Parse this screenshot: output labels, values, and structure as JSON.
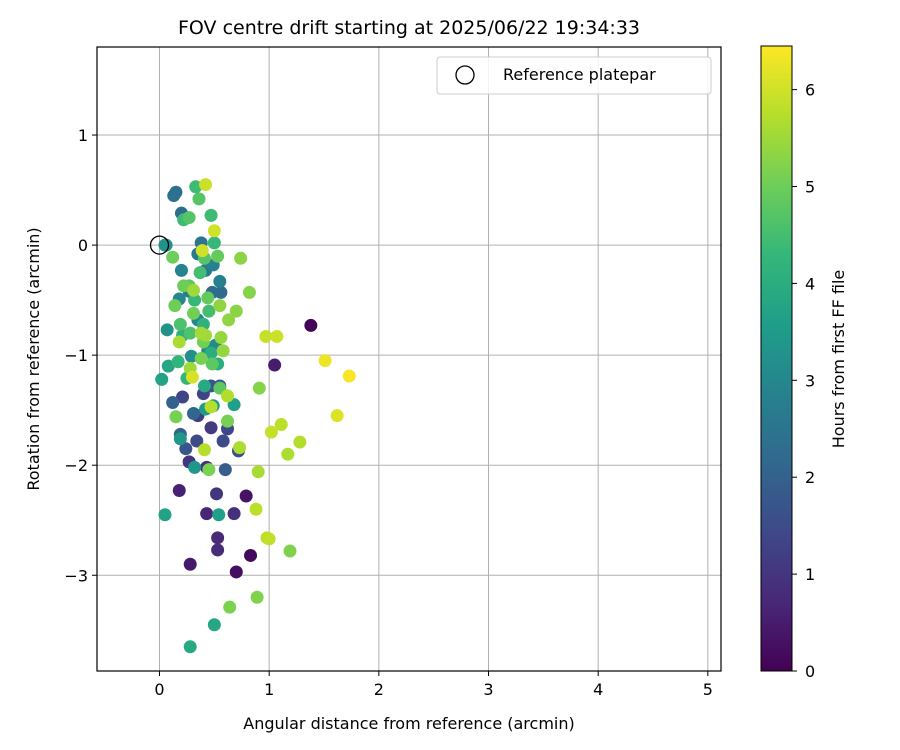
{
  "chart_data": {
    "type": "scatter",
    "title": "FOV centre drift starting at 2025/06/22 19:34:33",
    "xlabel": "Angular distance from reference (arcmin)",
    "ylabel": "Rotation from reference (arcmin)",
    "xlim": [
      -0.57,
      5.12
    ],
    "ylim": [
      -3.87,
      1.8
    ],
    "xticks": [
      0,
      1,
      2,
      3,
      4,
      5
    ],
    "yticks": [
      1,
      0,
      -1,
      -2,
      -3
    ],
    "grid": true,
    "legend": {
      "position": "top-right",
      "entries": [
        {
          "label": "Reference platepar",
          "marker": "open-circle"
        }
      ]
    },
    "reference_point": {
      "x": 0,
      "y": 0
    },
    "colorbar": {
      "label": "Hours from first FF file",
      "colormap": "viridis",
      "range": [
        0,
        6.45
      ],
      "ticks": [
        0,
        1,
        2,
        3,
        4,
        5,
        6
      ]
    },
    "colormap_stops": [
      "#440154",
      "#482878",
      "#3e4989",
      "#31688e",
      "#26828e",
      "#1f9e89",
      "#35b779",
      "#6ece58",
      "#b5de2b",
      "#fde725"
    ],
    "points": [
      [
        1.38,
        -0.73,
        0.05
      ],
      [
        0.83,
        -2.82,
        0.15
      ],
      [
        0.7,
        -2.97,
        0.25
      ],
      [
        0.79,
        -2.28,
        0.35
      ],
      [
        0.28,
        -2.9,
        0.45
      ],
      [
        1.05,
        -1.09,
        0.5
      ],
      [
        0.18,
        -2.23,
        0.6
      ],
      [
        0.43,
        -2.44,
        0.7
      ],
      [
        0.53,
        -2.66,
        0.75
      ],
      [
        0.53,
        -2.77,
        0.8
      ],
      [
        0.68,
        -2.44,
        0.9
      ],
      [
        0.43,
        -2.02,
        0.9
      ],
      [
        0.27,
        -1.97,
        1.0
      ],
      [
        0.52,
        -2.26,
        1.0
      ],
      [
        0.47,
        -1.66,
        1.1
      ],
      [
        0.35,
        -1.55,
        1.2
      ],
      [
        0.21,
        -1.38,
        1.3
      ],
      [
        0.4,
        -1.35,
        1.3
      ],
      [
        0.62,
        -1.67,
        1.4
      ],
      [
        0.58,
        -1.78,
        1.5
      ],
      [
        0.34,
        -1.78,
        1.5
      ],
      [
        0.72,
        -1.87,
        1.6
      ],
      [
        0.24,
        -1.85,
        1.7
      ],
      [
        0.47,
        -1.28,
        1.7
      ],
      [
        0.55,
        -1.28,
        1.8
      ],
      [
        0.6,
        -2.04,
        1.9
      ],
      [
        0.19,
        -1.72,
        2.0
      ],
      [
        0.12,
        -1.43,
        2.0
      ],
      [
        0.31,
        -1.53,
        2.1
      ],
      [
        0.56,
        -0.43,
        2.2
      ],
      [
        0.48,
        -0.43,
        2.3
      ],
      [
        0.2,
        0.29,
        2.3
      ],
      [
        0.13,
        0.45,
        2.4
      ],
      [
        0.15,
        0.48,
        2.4
      ],
      [
        0.38,
        0.02,
        2.5
      ],
      [
        0.35,
        -0.08,
        2.6
      ],
      [
        0.42,
        -0.23,
        2.6
      ],
      [
        0.27,
        -0.42,
        2.7
      ],
      [
        0.49,
        -0.18,
        2.8
      ],
      [
        0.55,
        -0.33,
        2.8
      ],
      [
        0.2,
        -0.23,
        2.9
      ],
      [
        0.35,
        -0.68,
        3.0
      ],
      [
        0.18,
        -0.49,
        3.0
      ],
      [
        0.51,
        -0.91,
        3.1
      ],
      [
        0.44,
        -0.96,
        3.1
      ],
      [
        0.29,
        -1.01,
        3.2
      ],
      [
        0.05,
        0.0,
        3.2
      ],
      [
        0.06,
        0.0,
        3.3
      ],
      [
        0.07,
        -0.77,
        3.3
      ],
      [
        0.19,
        -1.76,
        3.4
      ],
      [
        0.32,
        -2.02,
        3.4
      ],
      [
        0.42,
        -1.49,
        3.5
      ],
      [
        0.49,
        -1.46,
        3.5
      ],
      [
        0.68,
        -1.45,
        3.6
      ],
      [
        0.54,
        -2.45,
        3.6
      ],
      [
        0.05,
        -2.45,
        3.7
      ],
      [
        0.02,
        -1.22,
        3.7
      ],
      [
        0.08,
        -1.1,
        3.8
      ],
      [
        0.5,
        -3.45,
        3.8
      ],
      [
        0.28,
        -3.65,
        3.9
      ],
      [
        0.41,
        -1.28,
        3.9
      ],
      [
        0.47,
        -0.98,
        4.0
      ],
      [
        0.53,
        -1.08,
        4.0
      ],
      [
        0.4,
        -0.72,
        4.1
      ],
      [
        0.21,
        -0.82,
        4.1
      ],
      [
        0.25,
        -1.21,
        4.2
      ],
      [
        0.17,
        -1.06,
        4.2
      ],
      [
        0.32,
        -0.5,
        4.3
      ],
      [
        0.5,
        0.02,
        4.3
      ],
      [
        0.47,
        0.27,
        4.4
      ],
      [
        0.33,
        0.53,
        4.4
      ],
      [
        0.22,
        0.23,
        4.4
      ],
      [
        0.37,
        -0.25,
        4.5
      ],
      [
        0.45,
        -0.6,
        4.5
      ],
      [
        0.28,
        -0.8,
        4.6
      ],
      [
        0.19,
        -0.72,
        4.6
      ],
      [
        0.36,
        0.42,
        4.7
      ],
      [
        0.27,
        0.25,
        4.7
      ],
      [
        0.41,
        -0.12,
        4.7
      ],
      [
        0.48,
        -1.08,
        4.8
      ],
      [
        0.55,
        -1.3,
        4.8
      ],
      [
        0.27,
        -0.37,
        4.8
      ],
      [
        0.44,
        -0.48,
        4.9
      ],
      [
        0.53,
        -0.1,
        4.9
      ],
      [
        0.22,
        -0.37,
        5.0
      ],
      [
        0.12,
        -0.11,
        5.0
      ],
      [
        0.14,
        -0.55,
        5.0
      ],
      [
        0.31,
        -0.62,
        5.05
      ],
      [
        0.4,
        -0.88,
        5.05
      ],
      [
        0.62,
        -1.6,
        5.1
      ],
      [
        0.15,
        -1.56,
        5.1
      ],
      [
        0.38,
        -1.03,
        5.1
      ],
      [
        0.45,
        -2.04,
        5.15
      ],
      [
        0.64,
        -3.29,
        5.15
      ],
      [
        0.89,
        -3.2,
        5.2
      ],
      [
        1.19,
        -2.78,
        5.2
      ],
      [
        0.91,
        -1.3,
        5.25
      ],
      [
        0.82,
        -0.43,
        5.25
      ],
      [
        0.74,
        -0.12,
        5.3
      ],
      [
        0.7,
        -0.6,
        5.3
      ],
      [
        0.55,
        -0.55,
        5.35
      ],
      [
        0.63,
        -0.68,
        5.35
      ],
      [
        0.56,
        -0.84,
        5.4
      ],
      [
        0.58,
        -0.96,
        5.4
      ],
      [
        0.42,
        -0.82,
        5.5
      ],
      [
        0.31,
        -0.41,
        5.5
      ],
      [
        0.28,
        -1.12,
        5.5
      ],
      [
        0.38,
        -0.8,
        5.55
      ],
      [
        0.18,
        -0.88,
        5.6
      ],
      [
        0.9,
        -2.06,
        5.6
      ],
      [
        0.73,
        -1.84,
        5.65
      ],
      [
        1.17,
        -1.9,
        5.65
      ],
      [
        1.28,
        -1.79,
        5.7
      ],
      [
        0.62,
        -1.37,
        5.7
      ],
      [
        0.47,
        -1.47,
        5.75
      ],
      [
        0.41,
        -1.86,
        5.75
      ],
      [
        1.11,
        -1.63,
        5.8
      ],
      [
        0.88,
        -2.4,
        5.8
      ],
      [
        0.98,
        -2.66,
        5.85
      ],
      [
        1.0,
        -2.67,
        5.85
      ],
      [
        1.02,
        -1.7,
        5.9
      ],
      [
        0.97,
        -0.83,
        5.9
      ],
      [
        1.07,
        -0.83,
        5.95
      ],
      [
        0.42,
        0.55,
        5.95
      ],
      [
        0.39,
        -0.05,
        6.0
      ],
      [
        0.5,
        0.13,
        6.0
      ],
      [
        0.3,
        -1.2,
        6.05
      ],
      [
        1.62,
        -1.55,
        6.1
      ],
      [
        1.51,
        -1.05,
        6.3
      ],
      [
        1.73,
        -1.19,
        6.4
      ]
    ]
  }
}
